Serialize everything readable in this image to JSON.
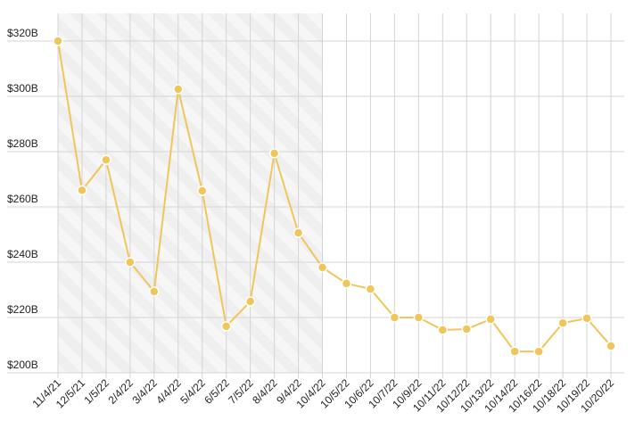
{
  "chart_data": {
    "type": "line",
    "categories": [
      "11/4/21",
      "12/5/21",
      "1/5/22",
      "2/4/22",
      "3/4/22",
      "4/4/22",
      "5/4/22",
      "6/5/22",
      "7/5/22",
      "8/4/22",
      "9/4/22",
      "10/4/22",
      "10/5/22",
      "10/6/22",
      "10/7/22",
      "10/9/22",
      "10/11/22",
      "10/12/22",
      "10/13/22",
      "10/14/22",
      "10/16/22",
      "10/18/22",
      "10/19/22",
      "10/20/22"
    ],
    "values": [
      320,
      266,
      277,
      240,
      229.4,
      302.6,
      265.8,
      216.8,
      225.8,
      279.4,
      250.6,
      238.1,
      232.3,
      230.3,
      220,
      220,
      215.5,
      215.8,
      219.4,
      207.7,
      207.7,
      218,
      219.7,
      209.7
    ],
    "color": "#efc65a",
    "ylim": [
      200,
      330
    ],
    "yticks": [
      {
        "value": 200,
        "label": "$200B"
      },
      {
        "value": 220,
        "label": "$220B"
      },
      {
        "value": 240,
        "label": "$240B"
      },
      {
        "value": 260,
        "label": "$260B"
      },
      {
        "value": 280,
        "label": "$280B"
      },
      {
        "value": 300,
        "label": "$300B"
      },
      {
        "value": 320,
        "label": "$320B"
      }
    ],
    "grid": true,
    "shaded_range": [
      "11/4/21",
      "10/4/22"
    ]
  }
}
